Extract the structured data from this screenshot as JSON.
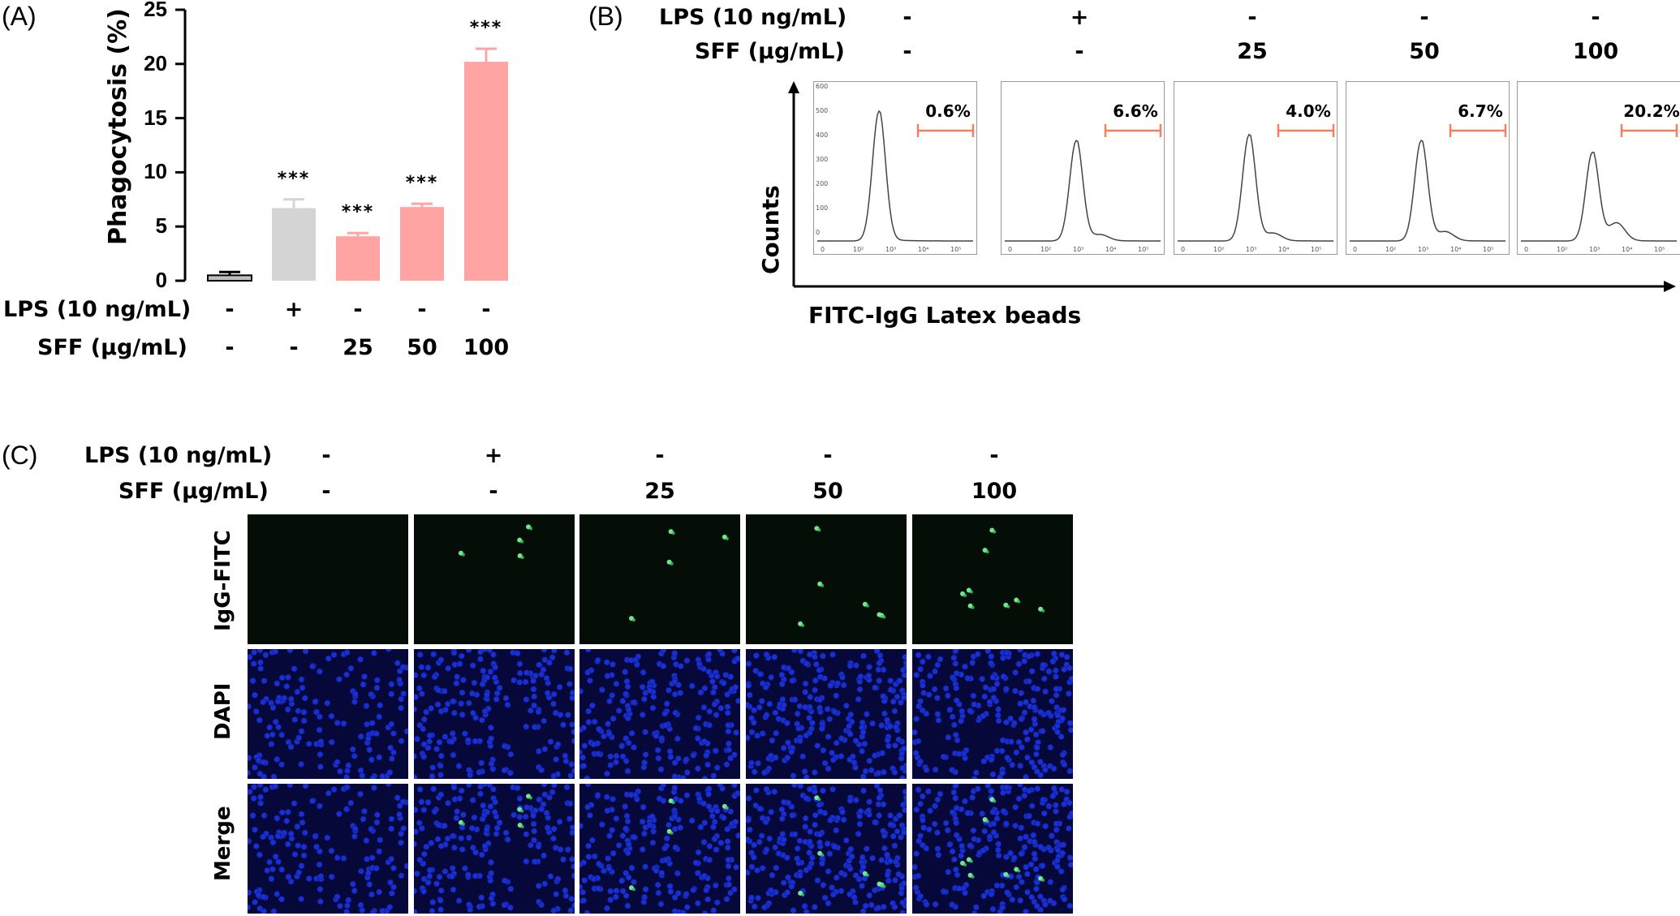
{
  "panel_labels": {
    "a": "(A)",
    "b": "(B)",
    "c": "(C)"
  },
  "treatments": {
    "lps_label": "LPS (10 ng/mL)",
    "sff_label": "SFF (μg/mL)",
    "lps": [
      "-",
      "+",
      "-",
      "-",
      "-"
    ],
    "sff": [
      "-",
      "-",
      "25",
      "50",
      "100"
    ]
  },
  "chart_data": {
    "type": "bar",
    "ylabel": "Phagocytosis (%)",
    "ylim": [
      0,
      25
    ],
    "yticks": [
      "0",
      "5",
      "10",
      "15",
      "20",
      "25"
    ],
    "values": [
      0.5,
      6.7,
      4.1,
      6.8,
      20.2
    ],
    "errors": [
      0.3,
      0.8,
      0.3,
      0.3,
      1.2
    ],
    "significance": [
      "",
      "***",
      "***",
      "***",
      "***"
    ],
    "colors": [
      "#bdbdbd",
      "#d4d4d4",
      "#ffa3a3",
      "#ffa3a3",
      "#ffa3a3"
    ]
  },
  "flow": {
    "ylabel": "Counts",
    "xlabel": "FITC-IgG Latex beads",
    "percentages": [
      "0.6%",
      "6.6%",
      "4.0%",
      "6.7%",
      "20.2%"
    ],
    "y_ticks": [
      "600",
      "500",
      "400",
      "300",
      "200",
      "100",
      "0"
    ],
    "x_ticks": [
      "0",
      "10²",
      "10³",
      "10⁴",
      "10⁵"
    ],
    "gate_color": "#f08060"
  },
  "microscopy": {
    "rows": [
      "IgG-FITC",
      "DAPI",
      "Merge"
    ]
  }
}
